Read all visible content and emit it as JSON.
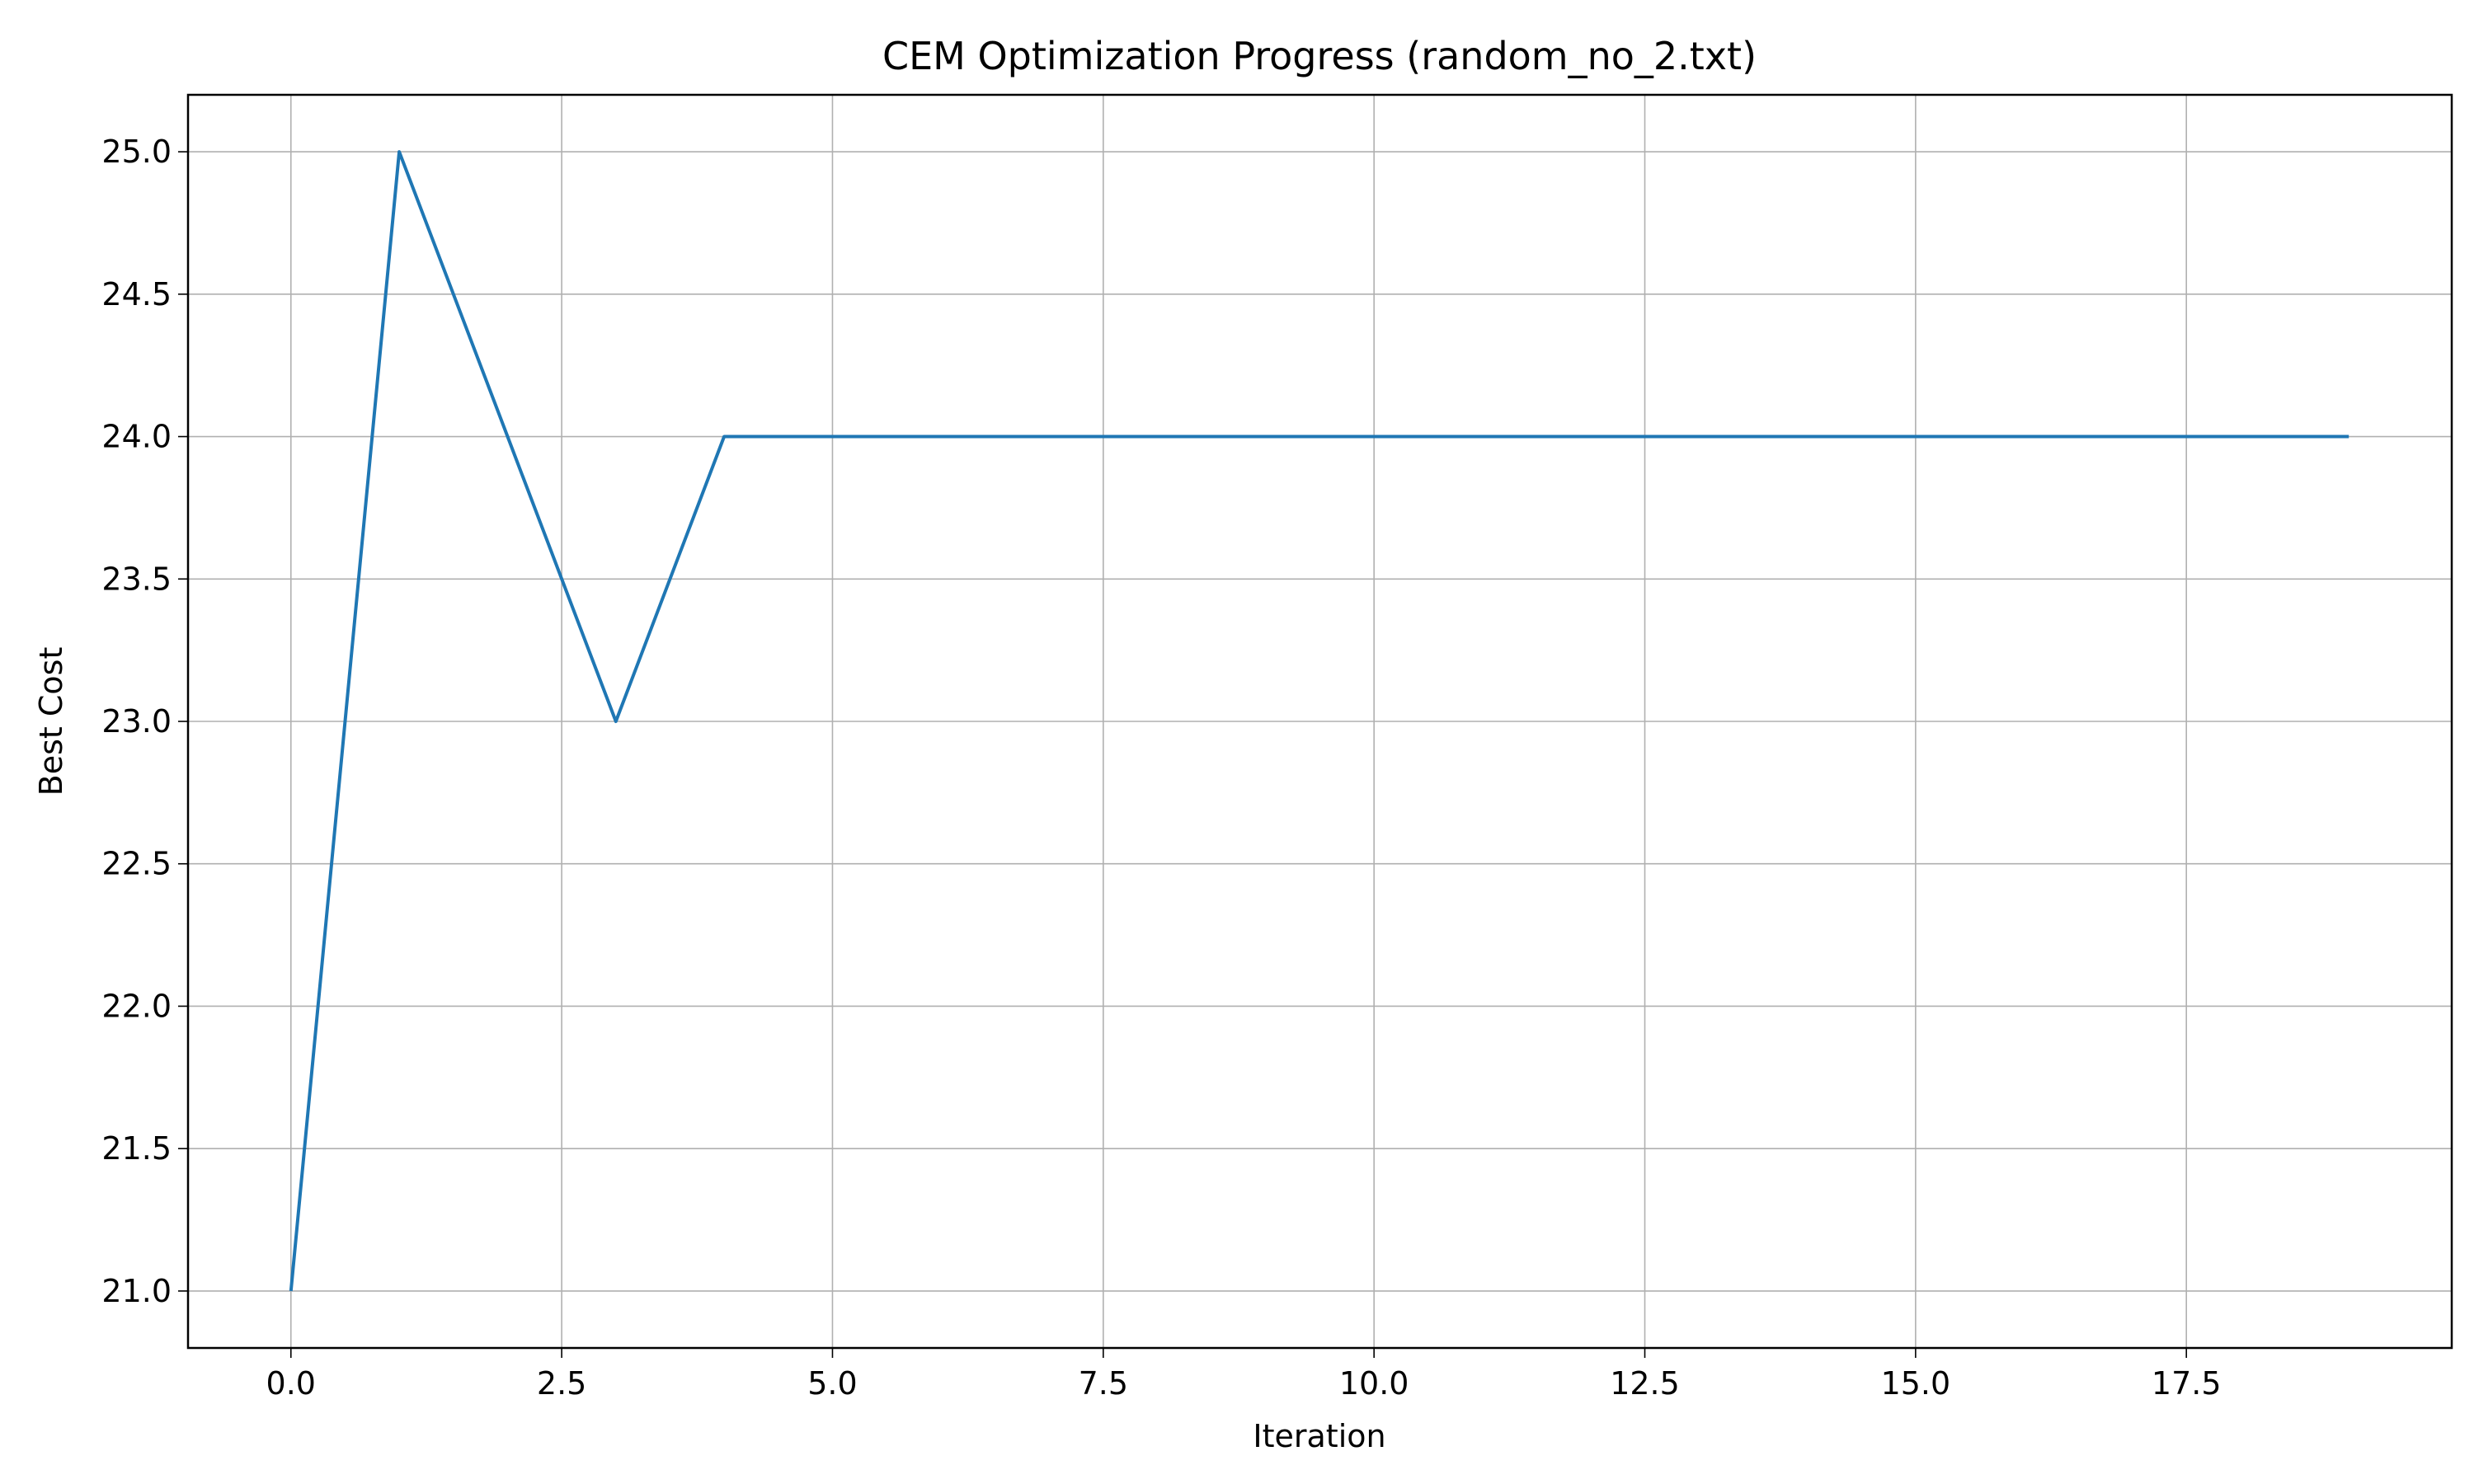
{
  "chart_data": {
    "type": "line",
    "title": "CEM Optimization Progress (random_no_2.txt)",
    "xlabel": "Iteration",
    "ylabel": "Best Cost",
    "xlim": [
      -0.95,
      19.95
    ],
    "ylim": [
      20.8,
      25.2
    ],
    "xticks": [
      0.0,
      2.5,
      5.0,
      7.5,
      10.0,
      12.5,
      15.0,
      17.5
    ],
    "xtick_labels": [
      "0.0",
      "2.5",
      "5.0",
      "7.5",
      "10.0",
      "12.5",
      "15.0",
      "17.5"
    ],
    "yticks": [
      21.0,
      21.5,
      22.0,
      22.5,
      23.0,
      23.5,
      24.0,
      24.5,
      25.0
    ],
    "ytick_labels": [
      "21.0",
      "21.5",
      "22.0",
      "22.5",
      "23.0",
      "23.5",
      "24.0",
      "24.5",
      "25.0"
    ],
    "grid": true,
    "series": [
      {
        "color": "#1f77b4",
        "x": [
          0,
          1,
          2,
          3,
          4,
          5,
          6,
          7,
          8,
          9,
          10,
          11,
          12,
          13,
          14,
          15,
          16,
          17,
          18,
          19
        ],
        "y": [
          21,
          25,
          24,
          23,
          24,
          24,
          24,
          24,
          24,
          24,
          24,
          24,
          24,
          24,
          24,
          24,
          24,
          24,
          24,
          24
        ]
      }
    ]
  }
}
